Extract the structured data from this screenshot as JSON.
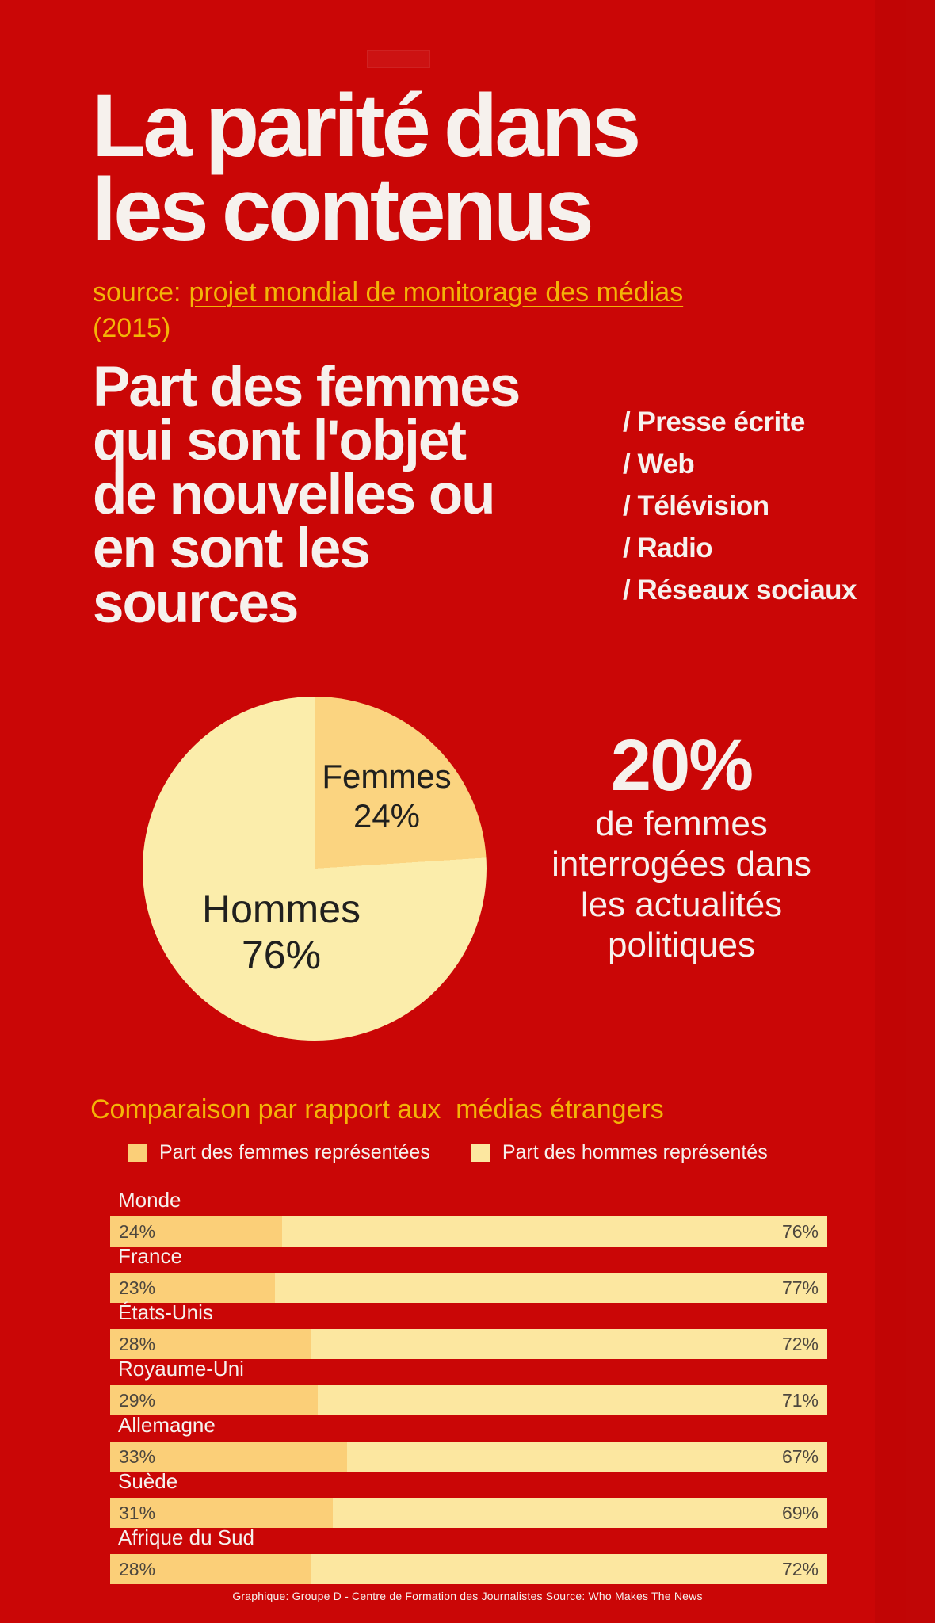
{
  "page": {
    "colors": {
      "background": "#CA0606",
      "accent_yellow": "#F3B407",
      "text_white": "#F6F1ED",
      "pie_femmes": "#FBD480",
      "pie_hommes": "#FBEDAB",
      "bar_femmes": "#FBCF78",
      "bar_hommes": "#FCE7A0",
      "dark_label": "#20201E",
      "bar_value_label": "#4D473E"
    }
  },
  "header": {
    "title": "La parité dans\nles contenus",
    "source_prefix": "source:",
    "source_link": "projet mondial de monitorage des médias",
    "source_year": "(2015)"
  },
  "intro": {
    "heading": "Part des femmes\nqui sont l'objet\nde nouvelles ou\nen sont les\nsources",
    "media_list": [
      "/ Presse écrite",
      "/ Web",
      "/ Télévision",
      "/ Radio",
      "/ Réseaux sociaux"
    ]
  },
  "stat": {
    "number": "20%",
    "text": "de femmes\ninterrogées dans\nles actualités\npolitiques"
  },
  "comparison": {
    "title": "Comparaison par rapport aux  médias étrangers",
    "legend": [
      {
        "label": "Part des femmes représentées",
        "color": "#FBCF78"
      },
      {
        "label": "Part des hommes représentés",
        "color": "#FCE7A0"
      }
    ]
  },
  "footer": {
    "credit": "Graphique: Groupe D - Centre de Formation des Journalistes Source: Who Makes The News"
  },
  "chart_data": [
    {
      "type": "pie",
      "title": "Part des femmes qui sont l'objet de nouvelles ou en sont les sources",
      "slices": [
        {
          "label": "Femmes",
          "value": 24,
          "value_label": "24%",
          "color": "#FBD480"
        },
        {
          "label": "Hommes",
          "value": 76,
          "value_label": "76%",
          "color": "#FBEDAB"
        }
      ],
      "start_angle_deg": 0,
      "direction": "clockwise",
      "annotation": "20% de femmes interrogées dans les actualités politiques"
    },
    {
      "type": "bar",
      "orientation": "horizontal",
      "stacked": true,
      "title": "Comparaison par rapport aux médias étrangers",
      "categories": [
        "Monde",
        "France",
        "États-Unis",
        "Royaume-Uni",
        "Allemagne",
        "Suède",
        "Afrique du Sud"
      ],
      "series": [
        {
          "name": "Part des femmes représentées",
          "color": "#FBCF78",
          "values": [
            24,
            23,
            28,
            29,
            33,
            31,
            28
          ]
        },
        {
          "name": "Part des hommes représentés",
          "color": "#FCE7A0",
          "values": [
            76,
            77,
            72,
            71,
            67,
            69,
            72
          ]
        }
      ],
      "value_suffix": "%",
      "xlim": [
        0,
        100
      ],
      "grid": false,
      "legend_position": "top"
    }
  ]
}
